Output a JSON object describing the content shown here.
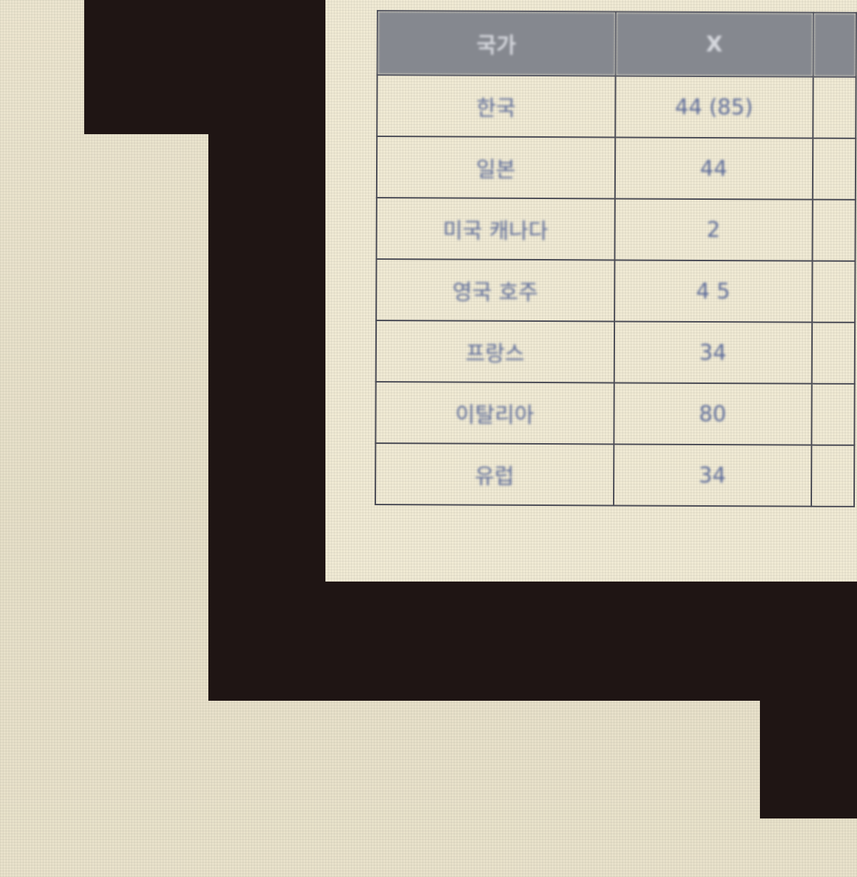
{
  "table": {
    "headers": [
      "국가",
      "X",
      ""
    ],
    "rows": [
      {
        "country": "한국",
        "value": "44 (85)",
        "extra": ""
      },
      {
        "country": "일본",
        "value": "44",
        "extra": ""
      },
      {
        "country": "미국 캐나다",
        "value": "2",
        "extra": ""
      },
      {
        "country": "영국 호주",
        "value": "4 5",
        "extra": ""
      },
      {
        "country": "프랑스",
        "value": "34",
        "extra": ""
      },
      {
        "country": "이탈리아",
        "value": "80",
        "extra": ""
      },
      {
        "country": "유럽",
        "value": "34",
        "extra": ""
      }
    ]
  },
  "colors": {
    "screen_background": "#e9e2cc",
    "dark_frame": "#1f1514",
    "table_header": "#85888f",
    "table_text": "#5b6a99",
    "table_border": "#4a4b55"
  }
}
